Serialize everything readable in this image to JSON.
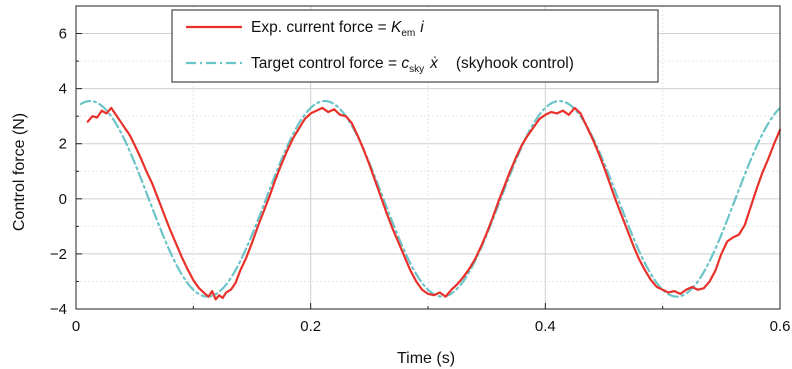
{
  "chart_data": {
    "type": "line",
    "xlabel": "Time (s)",
    "ylabel": "Control force (N)",
    "xlim": [
      0,
      0.6
    ],
    "ylim": [
      -4,
      7
    ],
    "xticks": [
      0,
      0.2,
      0.4,
      0.6
    ],
    "xtick_labels": [
      "0",
      "0.2",
      "0.4",
      "0.6"
    ],
    "yticks": [
      -4,
      -2,
      0,
      2,
      4,
      6
    ],
    "ytick_labels": [
      "−4",
      "−2",
      "0",
      "2",
      "4",
      "6"
    ],
    "grid": true,
    "legend_position": "top-center",
    "legend": {
      "exp": {
        "prefix": "Exp. current force = ",
        "sym": "K",
        "sub": "em",
        "var": "i",
        "suffix": ""
      },
      "target": {
        "prefix": "Target control force = ",
        "sym": "c",
        "sub": "sky",
        "var": "ẋ",
        "suffix": "(skyhook control)"
      }
    },
    "series": [
      {
        "key": "exp",
        "color": "#e8312a",
        "style": "solid",
        "x": [
          0.01,
          0.014,
          0.018,
          0.022,
          0.026,
          0.03,
          0.034,
          0.038,
          0.042,
          0.046,
          0.05,
          0.055,
          0.06,
          0.065,
          0.07,
          0.075,
          0.08,
          0.085,
          0.09,
          0.095,
          0.1,
          0.105,
          0.11,
          0.113,
          0.116,
          0.119,
          0.122,
          0.125,
          0.128,
          0.132,
          0.136,
          0.14,
          0.145,
          0.15,
          0.155,
          0.16,
          0.165,
          0.17,
          0.175,
          0.18,
          0.185,
          0.19,
          0.195,
          0.2,
          0.205,
          0.21,
          0.215,
          0.22,
          0.225,
          0.23,
          0.235,
          0.24,
          0.245,
          0.25,
          0.255,
          0.26,
          0.265,
          0.27,
          0.275,
          0.28,
          0.285,
          0.29,
          0.295,
          0.3,
          0.305,
          0.31,
          0.315,
          0.32,
          0.325,
          0.33,
          0.335,
          0.34,
          0.345,
          0.35,
          0.355,
          0.36,
          0.365,
          0.37,
          0.375,
          0.38,
          0.385,
          0.39,
          0.395,
          0.4,
          0.405,
          0.41,
          0.415,
          0.42,
          0.425,
          0.43,
          0.435,
          0.44,
          0.445,
          0.45,
          0.455,
          0.46,
          0.465,
          0.47,
          0.475,
          0.48,
          0.485,
          0.49,
          0.495,
          0.5,
          0.505,
          0.51,
          0.515,
          0.52,
          0.525,
          0.53,
          0.535,
          0.54,
          0.545,
          0.55,
          0.555,
          0.56,
          0.565,
          0.57,
          0.575,
          0.58,
          0.585,
          0.59,
          0.595,
          0.6
        ],
        "y": [
          2.8,
          3.0,
          2.95,
          3.2,
          3.1,
          3.3,
          3.05,
          2.8,
          2.55,
          2.3,
          1.95,
          1.5,
          1.0,
          0.55,
          0.0,
          -0.55,
          -1.1,
          -1.6,
          -2.1,
          -2.55,
          -2.95,
          -3.25,
          -3.45,
          -3.55,
          -3.35,
          -3.65,
          -3.5,
          -3.6,
          -3.4,
          -3.3,
          -3.05,
          -2.6,
          -2.15,
          -1.6,
          -1.0,
          -0.45,
          0.1,
          0.7,
          1.25,
          1.75,
          2.2,
          2.55,
          2.9,
          3.1,
          3.2,
          3.3,
          3.15,
          3.25,
          3.05,
          3.0,
          2.75,
          2.3,
          1.8,
          1.25,
          0.65,
          0.05,
          -0.55,
          -1.1,
          -1.6,
          -2.1,
          -2.6,
          -3.0,
          -3.3,
          -3.45,
          -3.5,
          -3.4,
          -3.55,
          -3.3,
          -3.1,
          -2.85,
          -2.55,
          -2.2,
          -1.75,
          -1.25,
          -0.7,
          -0.1,
          0.45,
          1.0,
          1.5,
          1.95,
          2.3,
          2.6,
          2.9,
          3.05,
          3.15,
          3.1,
          3.2,
          3.05,
          3.3,
          3.1,
          2.65,
          2.2,
          1.7,
          1.15,
          0.55,
          -0.05,
          -0.6,
          -1.15,
          -1.7,
          -2.2,
          -2.6,
          -2.95,
          -3.2,
          -3.3,
          -3.4,
          -3.35,
          -3.45,
          -3.3,
          -3.2,
          -3.3,
          -3.25,
          -3.0,
          -2.6,
          -2.0,
          -1.55,
          -1.4,
          -1.3,
          -0.95,
          -0.3,
          0.35,
          0.95,
          1.45,
          2.0,
          2.5
        ]
      },
      {
        "key": "target",
        "color": "#6bc4c8",
        "style": "dash-dot",
        "function": {
          "kind": "cosine",
          "amplitude": 3.55,
          "period": 0.2,
          "phase_peak_x": 0.012,
          "x_range": [
            0.004,
            0.6
          ]
        }
      }
    ]
  }
}
